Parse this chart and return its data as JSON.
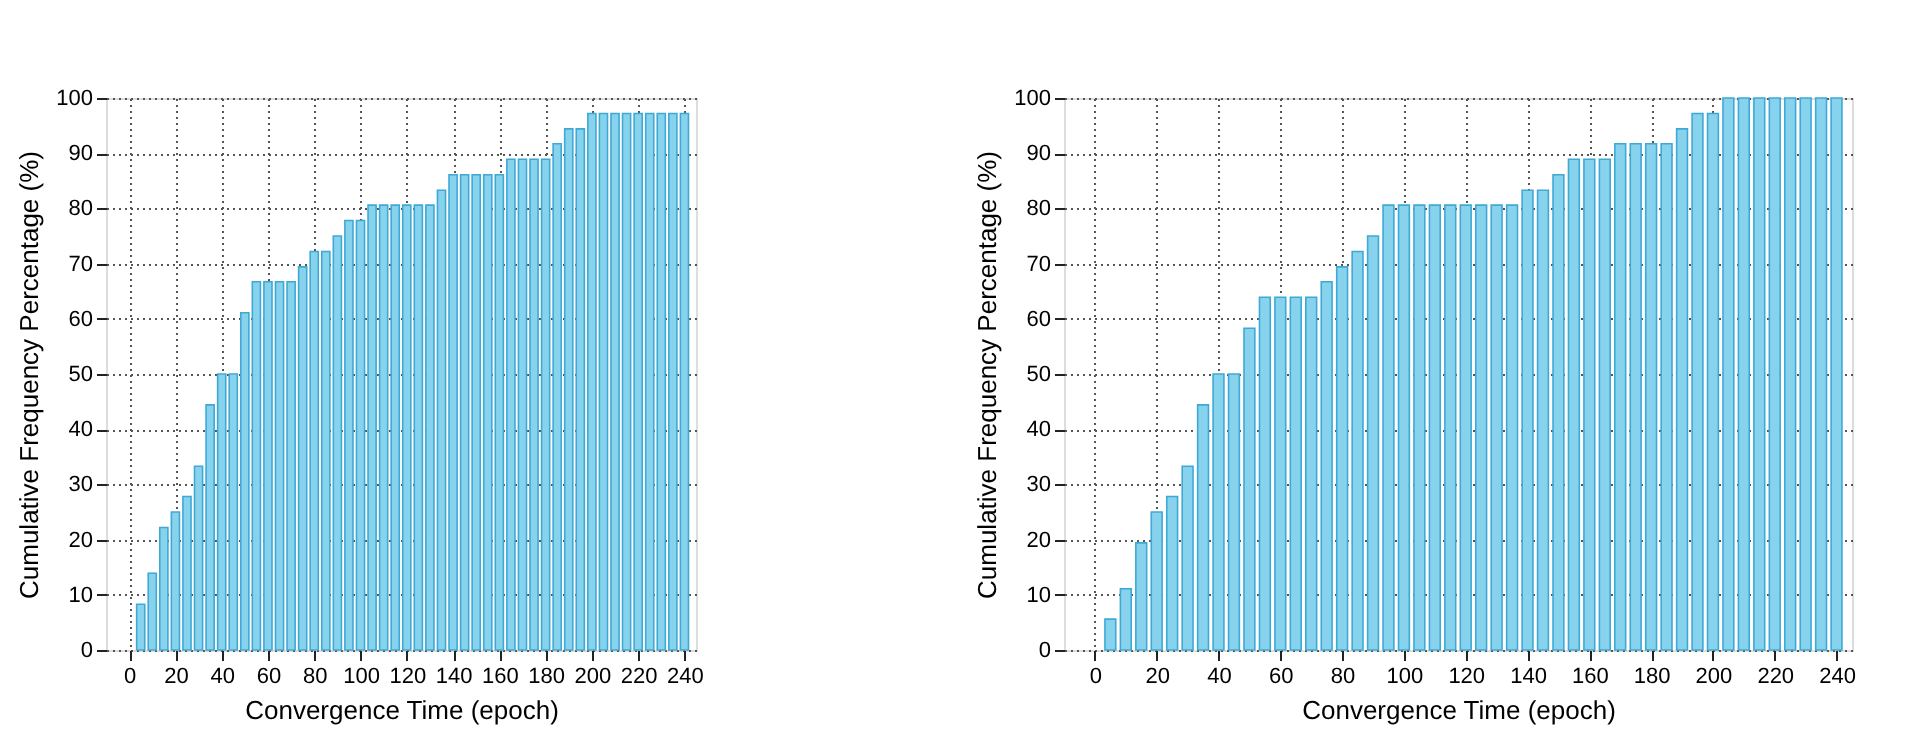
{
  "chart_data": [
    {
      "type": "bar",
      "xlabel": "Convergence Time (epoch)",
      "ylabel": "Cumulative Frequency Percentage (%)",
      "x": [
        5,
        10,
        15,
        20,
        25,
        30,
        35,
        40,
        45,
        50,
        55,
        60,
        65,
        70,
        75,
        80,
        85,
        90,
        95,
        100,
        105,
        110,
        115,
        120,
        125,
        130,
        135,
        140,
        145,
        150,
        155,
        160,
        165,
        170,
        175,
        180,
        185,
        190,
        195,
        200,
        205,
        210,
        215,
        220,
        225,
        230,
        235,
        240
      ],
      "series": [
        {
          "color": "#87d3ee",
          "values": [
            8.3,
            13.9,
            22.2,
            25,
            27.8,
            33.3,
            44.4,
            50,
            50,
            61.1,
            66.7,
            66.7,
            66.7,
            66.7,
            69.4,
            72.2,
            72.2,
            75,
            77.8,
            77.8,
            80.6,
            80.6,
            80.6,
            80.6,
            80.6,
            80.6,
            83.3,
            86.1,
            86.1,
            86.1,
            86.1,
            86.1,
            88.9,
            88.9,
            88.9,
            88.9,
            91.7,
            94.4,
            94.4,
            97.2,
            97.2,
            97.2,
            97.2,
            97.2,
            97.2,
            97.2,
            97.2,
            97.2
          ]
        }
      ],
      "xlim": [
        -10,
        245
      ],
      "xticks": [
        0,
        20,
        40,
        60,
        80,
        100,
        120,
        140,
        160,
        180,
        200,
        220,
        240
      ],
      "ylim": [
        0,
        100
      ],
      "yticks": [
        0,
        10,
        20,
        30,
        40,
        50,
        60,
        70,
        80,
        90,
        100
      ],
      "grid": true,
      "line_style": "dotted"
    },
    {
      "type": "bar",
      "xlabel": "Convergence Time (epoch)",
      "ylabel": "Cumulative Frequency Percentage (%)",
      "x": [
        5,
        10,
        15,
        20,
        25,
        30,
        35,
        40,
        45,
        50,
        55,
        60,
        65,
        70,
        75,
        80,
        85,
        90,
        95,
        100,
        105,
        110,
        115,
        120,
        125,
        130,
        135,
        140,
        145,
        150,
        155,
        160,
        165,
        170,
        175,
        180,
        185,
        190,
        195,
        200,
        205,
        210,
        215,
        220,
        225,
        230,
        235,
        240
      ],
      "series": [
        {
          "color": "#87d3ee",
          "values": [
            5.6,
            11.1,
            19.4,
            25,
            27.8,
            33.3,
            44.4,
            50,
            50,
            58.3,
            63.9,
            63.9,
            63.9,
            63.9,
            66.7,
            69.4,
            72.2,
            75,
            80.6,
            80.6,
            80.6,
            80.6,
            80.6,
            80.6,
            80.6,
            80.6,
            80.6,
            83.3,
            83.3,
            86.1,
            88.9,
            88.9,
            88.9,
            91.7,
            91.7,
            91.7,
            91.7,
            94.4,
            97.2,
            97.2,
            100,
            100,
            100,
            100,
            100,
            100,
            100,
            100
          ]
        }
      ],
      "xlim": [
        -10,
        245
      ],
      "xticks": [
        0,
        20,
        40,
        60,
        80,
        100,
        120,
        140,
        160,
        180,
        200,
        220,
        240
      ],
      "ylim": [
        0,
        100
      ],
      "yticks": [
        0,
        10,
        20,
        30,
        40,
        50,
        60,
        70,
        80,
        90,
        100
      ],
      "grid": true,
      "line_style": "dotted"
    }
  ]
}
